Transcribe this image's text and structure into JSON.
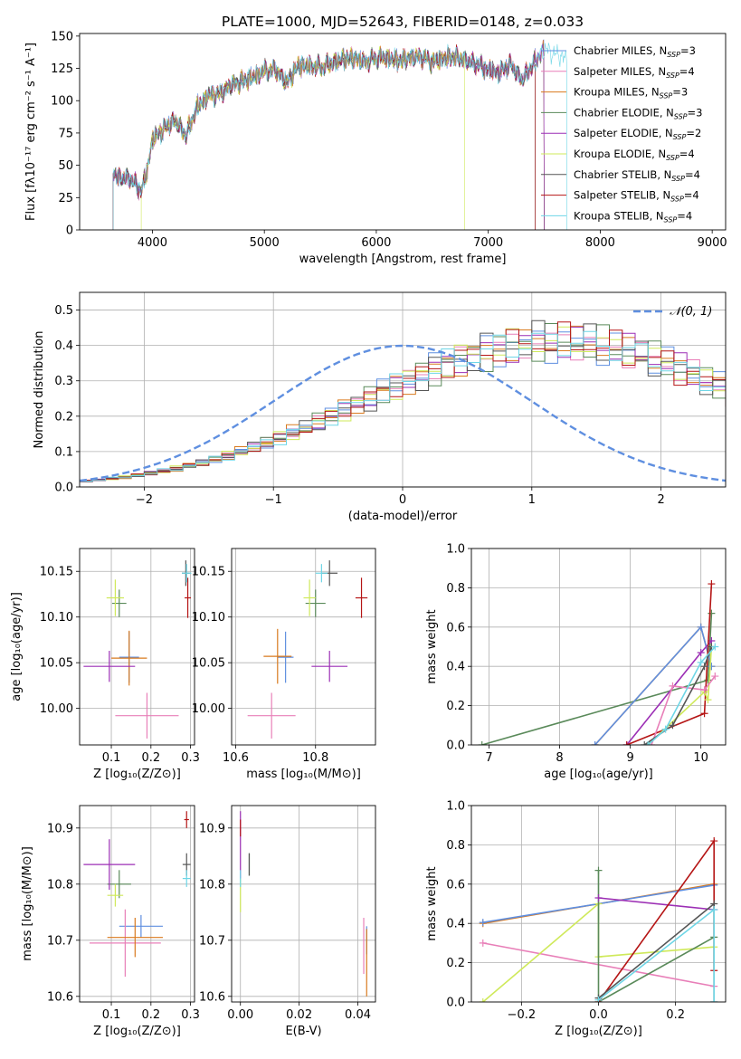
{
  "colors": {
    "Chabrier MILES": "#5f8fe0",
    "Salpeter MILES": "#e87fb8",
    "Kroupa MILES": "#d97a1e",
    "Chabrier ELODIE": "#5a8a5a",
    "Salpeter ELODIE": "#9c2fb5",
    "Kroupa ELODIE": "#cfe95a",
    "Chabrier STELIB": "#555555",
    "Salpeter STELIB": "#b51515",
    "Kroupa STELIB": "#6ed6e6",
    "normal": "#5f8fe0"
  },
  "chart_data": [
    {
      "id": "spectrum",
      "type": "line",
      "title": "PLATE=1000, MJD=52643, FIBERID=0148, z=0.033",
      "xlabel": "wavelength [Angstrom, rest frame]",
      "ylabel": "Flux [fλ10⁻¹⁷ erg cm⁻² s⁻¹ A⁻¹]",
      "xlim": [
        3350,
        9120
      ],
      "ylim": [
        0,
        152
      ],
      "xticks": [
        4000,
        5000,
        6000,
        7000,
        8000,
        9000
      ],
      "yticks": [
        0,
        25,
        50,
        75,
        100,
        125,
        150
      ],
      "legend": "top-right",
      "legend_entries": [
        "Chabrier MILES, N_SSP=3",
        "Salpeter MILES, N_SSP=4",
        "Kroupa MILES, N_SSP=3",
        "Chabrier ELODIE, N_SSP=3",
        "Salpeter ELODIE, N_SSP=2",
        "Kroupa ELODIE, N_SSP=4",
        "Chabrier STELIB, N_SSP=4",
        "Salpeter STELIB, N_SSP=4",
        "Kroupa STELIB, N_SSP=4"
      ],
      "legend_display": [
        {
          "label": "Chabrier MILES, N",
          "sub": "SSP",
          "tail": "=3"
        },
        {
          "label": "Salpeter MILES, N",
          "sub": "SSP",
          "tail": "=4"
        },
        {
          "label": "Kroupa MILES, N",
          "sub": "SSP",
          "tail": "=3"
        },
        {
          "label": "Chabrier ELODIE, N",
          "sub": "SSP",
          "tail": "=3"
        },
        {
          "label": "Salpeter ELODIE, N",
          "sub": "SSP",
          "tail": "=2"
        },
        {
          "label": "Kroupa ELODIE, N",
          "sub": "SSP",
          "tail": "=4"
        },
        {
          "label": "Chabrier STELIB, N",
          "sub": "SSP",
          "tail": "=4"
        },
        {
          "label": "Salpeter STELIB, N",
          "sub": "SSP",
          "tail": "=4"
        },
        {
          "label": "Kroupa STELIB, N",
          "sub": "SSP",
          "tail": "=4"
        }
      ],
      "spectrum_ranges": {
        "Chabrier MILES": [
          3650,
          7500
        ],
        "Salpeter MILES": [
          3650,
          7500
        ],
        "Kroupa MILES": [
          3650,
          7500
        ],
        "Chabrier ELODIE": [
          3650,
          7500
        ],
        "Salpeter ELODIE": [
          3650,
          7500
        ],
        "Kroupa ELODIE": [
          3900,
          6790
        ],
        "Chabrier STELIB": [
          3650,
          7420
        ],
        "Salpeter STELIB": [
          3650,
          7420
        ],
        "Kroupa STELIB": [
          3650,
          7700
        ]
      },
      "continuum": [
        [
          3650,
          45
        ],
        [
          3700,
          40
        ],
        [
          3800,
          40
        ],
        [
          3900,
          30
        ],
        [
          3950,
          45
        ],
        [
          4000,
          70
        ],
        [
          4100,
          78
        ],
        [
          4200,
          85
        ],
        [
          4300,
          73
        ],
        [
          4400,
          95
        ],
        [
          4500,
          104
        ],
        [
          4600,
          105
        ],
        [
          4700,
          112
        ],
        [
          4800,
          115
        ],
        [
          4900,
          118
        ],
        [
          5000,
          123
        ],
        [
          5100,
          124
        ],
        [
          5200,
          114
        ],
        [
          5300,
          127
        ],
        [
          5400,
          127
        ],
        [
          5500,
          126
        ],
        [
          5600,
          129
        ],
        [
          5700,
          132
        ],
        [
          5800,
          133
        ],
        [
          5900,
          130
        ],
        [
          6000,
          133
        ],
        [
          6100,
          133
        ],
        [
          6200,
          131
        ],
        [
          6300,
          133
        ],
        [
          6400,
          134
        ],
        [
          6500,
          130
        ],
        [
          6600,
          133
        ],
        [
          6700,
          134
        ],
        [
          6800,
          131
        ],
        [
          6900,
          128
        ],
        [
          7000,
          124
        ],
        [
          7100,
          122
        ],
        [
          7200,
          128
        ],
        [
          7300,
          116
        ],
        [
          7400,
          128
        ],
        [
          7500,
          140
        ],
        [
          7600,
          136
        ],
        [
          7700,
          133
        ]
      ]
    },
    {
      "id": "residuals",
      "type": "histogram",
      "xlabel": "(data-model)/error",
      "ylabel": "Normed distribution",
      "xlim": [
        -2.5,
        2.5
      ],
      "ylim": [
        0,
        0.55
      ],
      "xticks": [
        -2,
        -1,
        0,
        1,
        2
      ],
      "yticks": [
        0.0,
        0.1,
        0.2,
        0.3,
        0.4,
        0.5
      ],
      "grid": true,
      "legend": "top-right",
      "legend_label": "𝒩(0, 1)",
      "bin_width": 0.1,
      "base": [
        0.017,
        0.02,
        0.024,
        0.028,
        0.033,
        0.039,
        0.045,
        0.052,
        0.06,
        0.068,
        0.078,
        0.088,
        0.1,
        0.112,
        0.125,
        0.139,
        0.153,
        0.168,
        0.184,
        0.2,
        0.217,
        0.234,
        0.251,
        0.268,
        0.285,
        0.302,
        0.318,
        0.333,
        0.348,
        0.361,
        0.373,
        0.383,
        0.392,
        0.4,
        0.405,
        0.409,
        0.411,
        0.411,
        0.409,
        0.405,
        0.4,
        0.392,
        0.383,
        0.373,
        0.361,
        0.348,
        0.333,
        0.318,
        0.302,
        0.285,
        0.268,
        0.251,
        0.234,
        0.217,
        0.2,
        0.184,
        0.168,
        0.153,
        0.139,
        0.125,
        0.112,
        0.1,
        0.088,
        0.078,
        0.068,
        0.06,
        0.052,
        0.045,
        0.039,
        0.033,
        0.028,
        0.024,
        0.02,
        0.017,
        0.014,
        0.012,
        0.01,
        0.008,
        0.007,
        0.006
      ]
    },
    {
      "id": "age_vs_Z",
      "type": "errorbar",
      "xlabel": "Z [log₁₀(Z/Z⊙)]",
      "ylabel": "age  [log₁₀(age/yr)]",
      "xlim": [
        0.02,
        0.31
      ],
      "ylim": [
        9.96,
        10.175
      ],
      "xticks": [
        0.1,
        0.2,
        0.3
      ],
      "yticks": [
        10.0,
        10.05,
        10.1,
        10.15
      ],
      "grid": true,
      "points": [
        {
          "s": "Chabrier MILES",
          "x": 0.145,
          "xe": 0.025,
          "y": 10.056,
          "ye": 0.028
        },
        {
          "s": "Salpeter MILES",
          "x": 0.19,
          "xe": 0.08,
          "y": 9.992,
          "ye": 0.025
        },
        {
          "s": "Kroupa MILES",
          "x": 0.145,
          "xe": 0.045,
          "y": 10.055,
          "ye": 0.03
        },
        {
          "s": "Chabrier ELODIE",
          "x": 0.12,
          "xe": 0.018,
          "y": 10.115,
          "ye": 0.015
        },
        {
          "s": "Salpeter ELODIE",
          "x": 0.095,
          "xe": 0.065,
          "y": 10.046,
          "ye": 0.017
        },
        {
          "s": "Kroupa ELODIE",
          "x": 0.11,
          "xe": 0.022,
          "y": 10.121,
          "ye": 0.02
        },
        {
          "s": "Chabrier STELIB",
          "x": 0.288,
          "xe": 0.01,
          "y": 10.148,
          "ye": 0.014
        },
        {
          "s": "Salpeter STELIB",
          "x": 0.293,
          "xe": 0.008,
          "y": 10.121,
          "ye": 0.022
        },
        {
          "s": "Kroupa STELIB",
          "x": 0.29,
          "xe": 0.012,
          "y": 10.148,
          "ye": 0.01
        }
      ]
    },
    {
      "id": "age_vs_mass",
      "type": "errorbar",
      "xlabel": "mass [log₁₀(M/M⊙)]",
      "ylabel": "",
      "xlim": [
        10.59,
        10.95
      ],
      "ylim": [
        9.96,
        10.175
      ],
      "xticks": [
        10.6,
        10.8
      ],
      "yticks": [
        10.0,
        10.05,
        10.1,
        10.15
      ],
      "grid": true,
      "points": [
        {
          "s": "Chabrier MILES",
          "x": 10.725,
          "xe": 0.02,
          "y": 10.056,
          "ye": 0.028
        },
        {
          "s": "Salpeter MILES",
          "x": 10.69,
          "xe": 0.06,
          "y": 9.992,
          "ye": 0.025
        },
        {
          "s": "Kroupa MILES",
          "x": 10.705,
          "xe": 0.035,
          "y": 10.057,
          "ye": 0.03
        },
        {
          "s": "Chabrier ELODIE",
          "x": 10.8,
          "xe": 0.025,
          "y": 10.115,
          "ye": 0.015
        },
        {
          "s": "Salpeter ELODIE",
          "x": 10.835,
          "xe": 0.045,
          "y": 10.046,
          "ye": 0.017
        },
        {
          "s": "Kroupa ELODIE",
          "x": 10.785,
          "xe": 0.015,
          "y": 10.121,
          "ye": 0.02
        },
        {
          "s": "Chabrier STELIB",
          "x": 10.835,
          "xe": 0.02,
          "y": 10.148,
          "ye": 0.014
        },
        {
          "s": "Salpeter STELIB",
          "x": 10.915,
          "xe": 0.015,
          "y": 10.121,
          "ye": 0.022
        },
        {
          "s": "Kroupa STELIB",
          "x": 10.815,
          "xe": 0.015,
          "y": 10.148,
          "ye": 0.01
        }
      ]
    },
    {
      "id": "weight_vs_age",
      "type": "line",
      "xlabel": "age  [log₁₀(age/yr)]",
      "ylabel": "mass weight",
      "xlim": [
        6.75,
        10.35
      ],
      "ylim": [
        0,
        1
      ],
      "xticks": [
        7,
        8,
        9,
        10
      ],
      "yticks": [
        0.0,
        0.2,
        0.4,
        0.6,
        0.8,
        1.0
      ],
      "grid": true,
      "series": [
        {
          "s": "Chabrier ELODIE",
          "x": [
            6.9,
            10.1,
            10.15
          ],
          "y": [
            0.0,
            0.33,
            0.67
          ]
        },
        {
          "s": "Kroupa MILES",
          "x": [
            8.5,
            10.0,
            10.15
          ],
          "y": [
            0.0,
            0.6,
            0.4
          ]
        },
        {
          "s": "Chabrier MILES",
          "x": [
            8.5,
            10.0,
            10.15
          ],
          "y": [
            0.0,
            0.6,
            0.4
          ]
        },
        {
          "s": "Salpeter ELODIE",
          "x": [
            8.95,
            10.0,
            10.15
          ],
          "y": [
            0.0,
            0.47,
            0.53
          ]
        },
        {
          "s": "Salpeter STELIB",
          "x": [
            8.95,
            10.05,
            10.15
          ],
          "y": [
            0.0,
            0.16,
            0.82
          ]
        },
        {
          "s": "Kroupa ELODIE",
          "x": [
            9.25,
            10.05,
            10.1,
            10.15
          ],
          "y": [
            0.0,
            0.27,
            0.23,
            0.5
          ]
        },
        {
          "s": "Salpeter MILES",
          "x": [
            9.3,
            9.6,
            10.05,
            10.2
          ],
          "y": [
            0.0,
            0.3,
            0.28,
            0.35
          ]
        },
        {
          "s": "Chabrier STELIB",
          "x": [
            9.2,
            9.6,
            10.05,
            10.15
          ],
          "y": [
            0.0,
            0.1,
            0.4,
            0.5
          ]
        },
        {
          "s": "Kroupa STELIB",
          "x": [
            9.25,
            9.5,
            10.0,
            10.2
          ],
          "y": [
            0.0,
            0.08,
            0.42,
            0.5
          ]
        }
      ]
    },
    {
      "id": "mass_vs_Z",
      "type": "errorbar",
      "xlabel": "Z [log₁₀(Z/Z⊙)]",
      "ylabel": "mass [log₁₀(M/M⊙)]",
      "xlim": [
        0.02,
        0.31
      ],
      "ylim": [
        10.59,
        10.94
      ],
      "xticks": [
        0.1,
        0.2,
        0.3
      ],
      "yticks": [
        10.6,
        10.7,
        10.8,
        10.9
      ],
      "grid": true,
      "points": [
        {
          "s": "Chabrier MILES",
          "x": 0.175,
          "xe": 0.055,
          "y": 10.725,
          "ye": 0.02
        },
        {
          "s": "Salpeter MILES",
          "x": 0.135,
          "xe": 0.09,
          "y": 10.695,
          "ye": 0.06
        },
        {
          "s": "Kroupa MILES",
          "x": 0.16,
          "xe": 0.07,
          "y": 10.705,
          "ye": 0.035
        },
        {
          "s": "Chabrier ELODIE",
          "x": 0.12,
          "xe": 0.03,
          "y": 10.8,
          "ye": 0.025
        },
        {
          "s": "Salpeter ELODIE",
          "x": 0.095,
          "xe": 0.065,
          "y": 10.835,
          "ye": 0.045
        },
        {
          "s": "Kroupa ELODIE",
          "x": 0.11,
          "xe": 0.02,
          "y": 10.78,
          "ye": 0.02
        },
        {
          "s": "Chabrier STELIB",
          "x": 0.29,
          "xe": 0.01,
          "y": 10.835,
          "ye": 0.02
        },
        {
          "s": "Salpeter STELIB",
          "x": 0.29,
          "xe": 0.006,
          "y": 10.915,
          "ye": 0.015
        },
        {
          "s": "Kroupa STELIB",
          "x": 0.29,
          "xe": 0.01,
          "y": 10.81,
          "ye": 0.015
        }
      ]
    },
    {
      "id": "mass_vs_ebv",
      "type": "errorbar",
      "xlabel": "E(B-V)",
      "ylabel": "",
      "xlim": [
        -0.003,
        0.046
      ],
      "ylim": [
        10.59,
        10.94
      ],
      "xticks": [
        0.0,
        0.02,
        0.04
      ],
      "yticks": [
        10.6,
        10.7,
        10.8,
        10.9
      ],
      "grid": true,
      "points": [
        {
          "s": "Chabrier MILES",
          "x": 0.043,
          "xe": 0,
          "y": 10.7,
          "ye": 0.025
        },
        {
          "s": "Salpeter MILES",
          "x": 0.042,
          "xe": 0,
          "y": 10.69,
          "ye": 0.05
        },
        {
          "s": "Kroupa MILES",
          "x": 0.043,
          "xe": 0,
          "y": 10.66,
          "ye": 0.06
        },
        {
          "s": "Chabrier ELODIE",
          "x": 0.003,
          "xe": 0,
          "y": 10.835,
          "ye": 0.02
        },
        {
          "s": "Salpeter ELODIE",
          "x": 0.0,
          "xe": 0,
          "y": 10.87,
          "ye": 0.06
        },
        {
          "s": "Kroupa ELODIE",
          "x": 0.0,
          "xe": 0,
          "y": 10.78,
          "ye": 0.03
        },
        {
          "s": "Chabrier STELIB",
          "x": 0.003,
          "xe": 0,
          "y": 10.835,
          "ye": 0.02
        },
        {
          "s": "Salpeter STELIB",
          "x": 0.0,
          "xe": 0,
          "y": 10.9,
          "ye": 0.015
        },
        {
          "s": "Kroupa STELIB",
          "x": 0.0,
          "xe": 0,
          "y": 10.81,
          "ye": 0.015
        }
      ]
    },
    {
      "id": "weight_vs_Z",
      "type": "line",
      "xlabel": "Z [log₁₀(Z/Z⊙)]",
      "ylabel": "mass weight",
      "xlim": [
        -0.33,
        0.33
      ],
      "ylim": [
        0,
        1
      ],
      "xticks": [
        -0.2,
        0.0,
        0.2
      ],
      "yticks": [
        0.0,
        0.2,
        0.4,
        0.6,
        0.8,
        1.0
      ],
      "grid": true,
      "series": [
        {
          "s": "Kroupa MILES",
          "x": [
            -0.3,
            0.3
          ],
          "y": [
            0.4,
            0.6
          ]
        },
        {
          "s": "Chabrier MILES",
          "x": [
            -0.3,
            0.3
          ],
          "y": [
            0.405,
            0.595
          ]
        },
        {
          "s": "Salpeter MILES",
          "x": [
            -0.3,
            0.3
          ],
          "y": [
            0.3,
            0.08
          ]
        },
        {
          "s": "Kroupa ELODIE",
          "x": [
            -0.3,
            0.0,
            0.0,
            0.3
          ],
          "y": [
            0.0,
            0.5,
            0.23,
            0.28
          ]
        },
        {
          "s": "Chabrier ELODIE",
          "x": [
            0.0,
            0.0,
            0.3
          ],
          "y": [
            0.67,
            0.0,
            0.33
          ]
        },
        {
          "s": "Salpeter ELODIE",
          "x": [
            0.0,
            0.3
          ],
          "y": [
            0.53,
            0.47
          ]
        },
        {
          "s": "Salpeter STELIB",
          "x": [
            0.0,
            0.3,
            0.3
          ],
          "y": [
            0.0,
            0.82,
            0.16
          ]
        },
        {
          "s": "Chabrier STELIB",
          "x": [
            0.0,
            0.3,
            0.3
          ],
          "y": [
            0.02,
            0.5,
            0.0
          ]
        },
        {
          "s": "Kroupa STELIB",
          "x": [
            0.0,
            0.3,
            0.3
          ],
          "y": [
            0.01,
            0.47,
            0.0
          ]
        }
      ]
    }
  ]
}
